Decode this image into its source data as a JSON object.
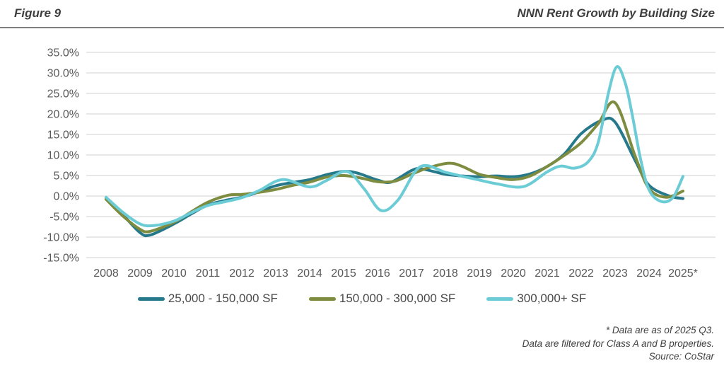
{
  "header": {
    "figure_label": "Figure 9",
    "title": "NNN Rent Growth by Building Size"
  },
  "chart_data": {
    "type": "line",
    "title": "NNN Rent Growth by Building Size",
    "xlabel": "",
    "ylabel": "",
    "ylim": [
      -15,
      35
    ],
    "xlim": [
      2008,
      2025
    ],
    "grid": "horizontal",
    "gridline_color": "#d9d9d9",
    "axis_text_color": "#595959",
    "legend_position": "bottom",
    "y_ticks": [
      {
        "value": 35,
        "label": "35.0%"
      },
      {
        "value": 30,
        "label": "30.0%"
      },
      {
        "value": 25,
        "label": "25.0%"
      },
      {
        "value": 20,
        "label": "20.0%"
      },
      {
        "value": 15,
        "label": "15.0%"
      },
      {
        "value": 10,
        "label": "10.0%"
      },
      {
        "value": 5,
        "label": "5.0%"
      },
      {
        "value": 0,
        "label": "0.0%"
      },
      {
        "value": -5,
        "label": "-5.0%"
      },
      {
        "value": -10,
        "label": "-10.0%"
      },
      {
        "value": -15,
        "label": "-15.0%"
      }
    ],
    "x_ticks": [
      {
        "value": 2008,
        "label": "2008"
      },
      {
        "value": 2009,
        "label": "2009"
      },
      {
        "value": 2010,
        "label": "2010"
      },
      {
        "value": 2011,
        "label": "2011"
      },
      {
        "value": 2012,
        "label": "2012"
      },
      {
        "value": 2013,
        "label": "2013"
      },
      {
        "value": 2014,
        "label": "2014"
      },
      {
        "value": 2015,
        "label": "2015"
      },
      {
        "value": 2016,
        "label": "2016"
      },
      {
        "value": 2017,
        "label": "2017"
      },
      {
        "value": 2018,
        "label": "2018"
      },
      {
        "value": 2019,
        "label": "2019"
      },
      {
        "value": 2020,
        "label": "2020"
      },
      {
        "value": 2021,
        "label": "2021"
      },
      {
        "value": 2022,
        "label": "2022"
      },
      {
        "value": 2023,
        "label": "2023"
      },
      {
        "value": 2024,
        "label": "2024"
      },
      {
        "value": 2025,
        "label": "2025*"
      }
    ],
    "series": [
      {
        "name": "25,000 - 150,000 SF",
        "color": "#26798b",
        "points": [
          [
            2008.0,
            -0.5
          ],
          [
            2008.5,
            -4.6
          ],
          [
            2009.0,
            -8.9
          ],
          [
            2009.3,
            -9.5
          ],
          [
            2010.0,
            -6.8
          ],
          [
            2010.5,
            -4.4
          ],
          [
            2011.0,
            -2.2
          ],
          [
            2011.5,
            -1.1
          ],
          [
            2012.0,
            -0.3
          ],
          [
            2012.5,
            1.0
          ],
          [
            2013.0,
            2.5
          ],
          [
            2013.5,
            3.3
          ],
          [
            2014.0,
            4.0
          ],
          [
            2014.5,
            5.2
          ],
          [
            2015.0,
            6.0
          ],
          [
            2015.4,
            5.6
          ],
          [
            2016.0,
            3.9
          ],
          [
            2016.4,
            3.4
          ],
          [
            2017.0,
            6.2
          ],
          [
            2017.3,
            6.6
          ],
          [
            2018.0,
            5.3
          ],
          [
            2018.5,
            4.9
          ],
          [
            2019.0,
            4.7
          ],
          [
            2019.5,
            4.9
          ],
          [
            2020.0,
            4.7
          ],
          [
            2020.5,
            5.4
          ],
          [
            2021.0,
            7.2
          ],
          [
            2021.5,
            10.2
          ],
          [
            2022.0,
            15.2
          ],
          [
            2022.6,
            18.4
          ],
          [
            2023.0,
            18.0
          ],
          [
            2023.6,
            8.5
          ],
          [
            2024.0,
            2.6
          ],
          [
            2024.6,
            0.0
          ],
          [
            2025.0,
            -0.6
          ]
        ]
      },
      {
        "name": "150,000 - 300,000 SF",
        "color": "#7e8c3f",
        "points": [
          [
            2008.0,
            -0.8
          ],
          [
            2008.5,
            -4.9
          ],
          [
            2009.0,
            -8.1
          ],
          [
            2009.3,
            -8.6
          ],
          [
            2010.0,
            -6.4
          ],
          [
            2010.5,
            -3.9
          ],
          [
            2011.0,
            -1.5
          ],
          [
            2011.6,
            0.2
          ],
          [
            2012.0,
            0.4
          ],
          [
            2012.5,
            0.9
          ],
          [
            2013.0,
            1.6
          ],
          [
            2013.5,
            2.6
          ],
          [
            2014.0,
            3.4
          ],
          [
            2014.5,
            4.6
          ],
          [
            2015.0,
            5.0
          ],
          [
            2015.5,
            4.4
          ],
          [
            2016.0,
            3.5
          ],
          [
            2016.5,
            3.6
          ],
          [
            2017.0,
            5.3
          ],
          [
            2017.5,
            6.9
          ],
          [
            2018.1,
            8.0
          ],
          [
            2018.5,
            7.2
          ],
          [
            2019.0,
            5.3
          ],
          [
            2019.5,
            4.5
          ],
          [
            2020.0,
            4.0
          ],
          [
            2020.5,
            4.9
          ],
          [
            2021.0,
            7.2
          ],
          [
            2021.5,
            9.9
          ],
          [
            2022.0,
            13.0
          ],
          [
            2022.5,
            17.6
          ],
          [
            2023.0,
            22.7
          ],
          [
            2023.6,
            9.5
          ],
          [
            2024.0,
            1.8
          ],
          [
            2024.5,
            -0.3
          ],
          [
            2025.0,
            1.2
          ]
        ]
      },
      {
        "name": "300,000+ SF",
        "color": "#6cccd6",
        "points": [
          [
            2008.0,
            -0.3
          ],
          [
            2008.5,
            -4.0
          ],
          [
            2009.0,
            -6.8
          ],
          [
            2009.4,
            -7.2
          ],
          [
            2010.0,
            -6.1
          ],
          [
            2010.5,
            -4.1
          ],
          [
            2011.0,
            -2.3
          ],
          [
            2011.5,
            -1.4
          ],
          [
            2012.0,
            -0.4
          ],
          [
            2012.5,
            1.3
          ],
          [
            2013.2,
            4.0
          ],
          [
            2014.0,
            2.2
          ],
          [
            2014.5,
            3.8
          ],
          [
            2015.1,
            6.0
          ],
          [
            2015.6,
            1.8
          ],
          [
            2016.1,
            -3.5
          ],
          [
            2016.6,
            -1.0
          ],
          [
            2017.25,
            7.1
          ],
          [
            2018.0,
            5.8
          ],
          [
            2018.5,
            4.8
          ],
          [
            2019.0,
            3.9
          ],
          [
            2019.5,
            3.0
          ],
          [
            2020.3,
            2.3
          ],
          [
            2021.0,
            5.9
          ],
          [
            2021.4,
            7.3
          ],
          [
            2021.8,
            6.8
          ],
          [
            2022.2,
            8.3
          ],
          [
            2022.5,
            13.0
          ],
          [
            2022.8,
            25.0
          ],
          [
            2023.05,
            31.5
          ],
          [
            2023.3,
            27.5
          ],
          [
            2023.5,
            20.0
          ],
          [
            2023.75,
            9.0
          ],
          [
            2024.0,
            1.5
          ],
          [
            2024.35,
            -1.3
          ],
          [
            2024.7,
            -0.4
          ],
          [
            2025.0,
            4.8
          ]
        ]
      }
    ]
  },
  "footnote": {
    "line1": "* Data are as of 2025 Q3.",
    "line2": "Data are filtered for Class A and B properties.",
    "line3": "Source: CoStar"
  }
}
